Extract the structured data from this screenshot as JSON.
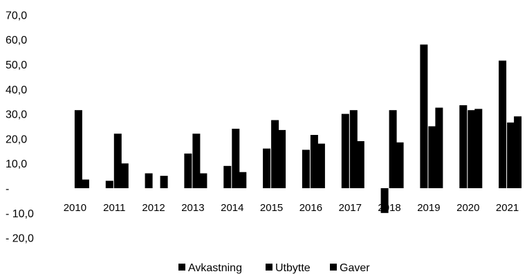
{
  "chart_data": {
    "type": "bar",
    "categories": [
      "2010",
      "2011",
      "2012",
      "2013",
      "2014",
      "2015",
      "2016",
      "2017",
      "2018",
      "2019",
      "2020",
      "2021"
    ],
    "series": [
      {
        "name": "Avkastning",
        "values": [
          0.0,
          3.0,
          6.0,
          14.0,
          9.0,
          16.0,
          15.5,
          30.0,
          -10.0,
          58.0,
          33.5,
          51.5
        ]
      },
      {
        "name": "Utbytte",
        "values": [
          31.5,
          22.0,
          0.0,
          22.0,
          24.0,
          27.5,
          21.5,
          31.5,
          31.5,
          25.0,
          31.5,
          26.5
        ]
      },
      {
        "name": "Gaver",
        "values": [
          3.5,
          10.0,
          5.0,
          6.0,
          6.5,
          23.5,
          18.0,
          19.0,
          18.5,
          32.5,
          32.0,
          29.0
        ]
      }
    ],
    "ylim": [
      -20,
      70
    ],
    "yticks": [
      {
        "value": 70,
        "label": "70,0"
      },
      {
        "value": 60,
        "label": "60,0"
      },
      {
        "value": 50,
        "label": "50,0"
      },
      {
        "value": 40,
        "label": "40,0"
      },
      {
        "value": 30,
        "label": "30,0"
      },
      {
        "value": 20,
        "label": "20,0"
      },
      {
        "value": 10,
        "label": "10,0"
      },
      {
        "value": 0,
        "label": "-"
      },
      {
        "value": -10,
        "label": "- 10,0"
      },
      {
        "value": -20,
        "label": "- 20,0"
      }
    ],
    "title": "",
    "xlabel": "",
    "ylabel": "",
    "grid": false,
    "legend_position": "bottom",
    "colors": {
      "Avkastning": "#000000",
      "Utbytte": "#000000",
      "Gaver": "#000000"
    }
  }
}
